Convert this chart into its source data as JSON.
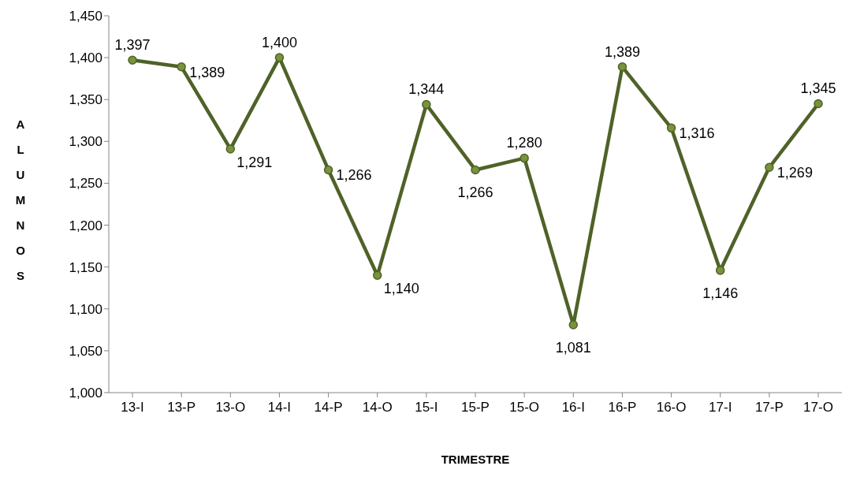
{
  "chart_data": {
    "type": "line",
    "xlabel": "TRIMESTRE",
    "ylabel": "ALUMNOS",
    "categories": [
      "13-I",
      "13-P",
      "13-O",
      "14-I",
      "14-P",
      "14-O",
      "15-I",
      "15-P",
      "15-O",
      "16-I",
      "16-P",
      "16-O",
      "17-I",
      "17-P",
      "17-O"
    ],
    "series": [
      {
        "color": "#4f6228",
        "values": [
          1397,
          1389,
          1291,
          1400,
          1266,
          1140,
          1344,
          1266,
          1280,
          1081,
          1389,
          1316,
          1146,
          1269,
          1345
        ],
        "value_labels": [
          "1,397",
          "1,389",
          "1,291",
          "1,400",
          "1,266",
          "1,140",
          "1,344",
          "1,266",
          "1,280",
          "1,081",
          "1,389",
          "1,316",
          "1,146",
          "1,269",
          "1,345"
        ]
      }
    ],
    "ylim": [
      1000,
      1450
    ],
    "yticks": [
      {
        "value": 1000,
        "label": "1,000"
      },
      {
        "value": 1050,
        "label": "1,050"
      },
      {
        "value": 1100,
        "label": "1,100"
      },
      {
        "value": 1150,
        "label": "1,150"
      },
      {
        "value": 1200,
        "label": "1,200"
      },
      {
        "value": 1250,
        "label": "1,250"
      },
      {
        "value": 1300,
        "label": "1,300"
      },
      {
        "value": 1350,
        "label": "1,350"
      },
      {
        "value": 1400,
        "label": "1,400"
      },
      {
        "value": 1450,
        "label": "1,450"
      }
    ],
    "grid": false,
    "legend": false,
    "marker": "circle",
    "line_style": "solid"
  }
}
